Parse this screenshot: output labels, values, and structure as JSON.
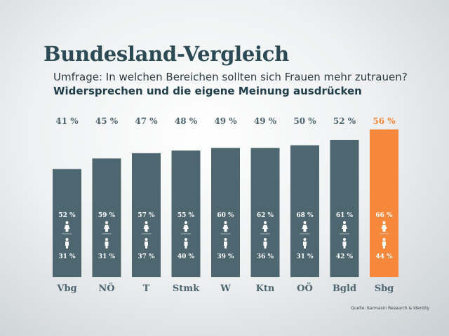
{
  "header": {
    "title": "Bundesland-Vergleich",
    "question": "Umfrage: In welchen Bereichen sollten sich Frauen mehr zutrauen?",
    "topic": "Widersprechen und die eigene Meinung ausdrücken"
  },
  "source": "Quelle: Karmasin Research & Identity",
  "chart_data": {
    "type": "bar",
    "categories": [
      "Vbg",
      "NÖ",
      "T",
      "Stmk",
      "W",
      "Ktn",
      "OÖ",
      "Bgld",
      "Sbg"
    ],
    "values": [
      41,
      45,
      47,
      48,
      49,
      49,
      50,
      52,
      56
    ],
    "value_labels": [
      "41 %",
      "45 %",
      "47 %",
      "48 %",
      "49 %",
      "49 %",
      "50 %",
      "52 %",
      "56 %"
    ],
    "women": [
      "52 %",
      "59 %",
      "57 %",
      "55 %",
      "60 %",
      "62 %",
      "68 %",
      "61 %",
      "66 %"
    ],
    "men": [
      "31 %",
      "31 %",
      "37 %",
      "40 %",
      "39 %",
      "36 %",
      "31 %",
      "42 %",
      "44 %"
    ],
    "highlight_index": 8,
    "colors": {
      "bar": "#4e6670",
      "highlight": "#f5883a",
      "label": "#4e6670"
    },
    "icons": {
      "women": "female-icon",
      "men": "male-icon"
    }
  }
}
